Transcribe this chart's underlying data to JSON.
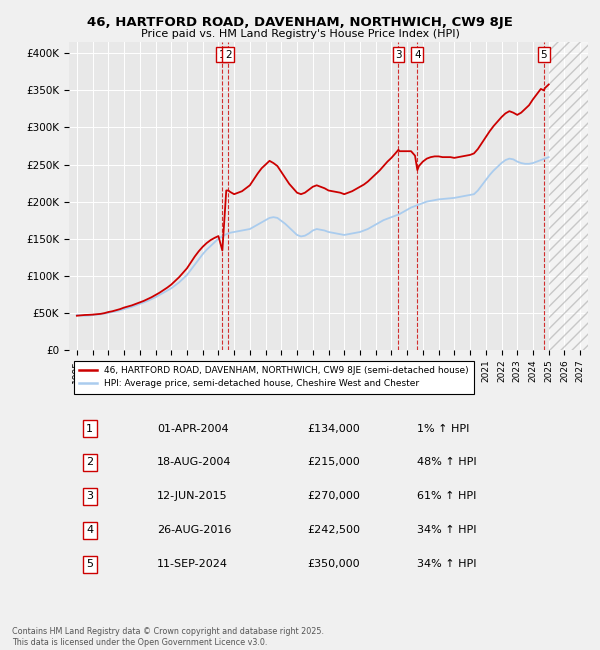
{
  "title": "46, HARTFORD ROAD, DAVENHAM, NORTHWICH, CW9 8JE",
  "subtitle": "Price paid vs. HM Land Registry's House Price Index (HPI)",
  "ytick_values": [
    0,
    50000,
    100000,
    150000,
    200000,
    250000,
    300000,
    350000,
    400000
  ],
  "ylim": [
    0,
    415000
  ],
  "xlim_start": 1994.5,
  "xlim_end": 2027.5,
  "background_color": "#f0f0f0",
  "chart_bg_color": "#e8e8e8",
  "grid_color": "#ffffff",
  "hpi_color": "#aaccee",
  "property_color": "#cc0000",
  "marker_line_color": "#cc0000",
  "legend_property": "46, HARTFORD ROAD, DAVENHAM, NORTHWICH, CW9 8JE (semi-detached house)",
  "legend_hpi": "HPI: Average price, semi-detached house, Cheshire West and Chester",
  "footer": "Contains HM Land Registry data © Crown copyright and database right 2025.\nThis data is licensed under the Open Government Licence v3.0.",
  "transactions": [
    {
      "num": 1,
      "date": "01-APR-2004",
      "price": 134000,
      "pct": "1%",
      "year": 2004.25
    },
    {
      "num": 2,
      "date": "18-AUG-2004",
      "price": 215000,
      "pct": "48%",
      "year": 2004.63
    },
    {
      "num": 3,
      "date": "12-JUN-2015",
      "price": 270000,
      "pct": "61%",
      "year": 2015.45
    },
    {
      "num": 4,
      "date": "26-AUG-2016",
      "price": 242500,
      "pct": "34%",
      "year": 2016.65
    },
    {
      "num": 5,
      "date": "11-SEP-2024",
      "price": 350000,
      "pct": "34%",
      "year": 2024.7
    }
  ],
  "hpi_data": [
    [
      1995.0,
      47000
    ],
    [
      1995.25,
      46500
    ],
    [
      1995.5,
      46000
    ],
    [
      1995.75,
      46200
    ],
    [
      1996.0,
      47000
    ],
    [
      1996.25,
      47500
    ],
    [
      1996.5,
      48000
    ],
    [
      1996.75,
      49000
    ],
    [
      1997.0,
      50000
    ],
    [
      1997.25,
      51000
    ],
    [
      1997.5,
      52000
    ],
    [
      1997.75,
      53500
    ],
    [
      1998.0,
      55000
    ],
    [
      1998.25,
      56500
    ],
    [
      1998.5,
      58000
    ],
    [
      1998.75,
      60000
    ],
    [
      1999.0,
      62000
    ],
    [
      1999.25,
      64000
    ],
    [
      1999.5,
      66000
    ],
    [
      1999.75,
      68500
    ],
    [
      2000.0,
      71000
    ],
    [
      2000.25,
      74000
    ],
    [
      2000.5,
      77000
    ],
    [
      2000.75,
      80000
    ],
    [
      2001.0,
      83000
    ],
    [
      2001.25,
      87000
    ],
    [
      2001.5,
      91000
    ],
    [
      2001.75,
      96000
    ],
    [
      2002.0,
      101000
    ],
    [
      2002.25,
      108000
    ],
    [
      2002.5,
      115000
    ],
    [
      2002.75,
      122000
    ],
    [
      2003.0,
      129000
    ],
    [
      2003.25,
      135000
    ],
    [
      2003.5,
      140000
    ],
    [
      2003.75,
      145000
    ],
    [
      2004.0,
      150000
    ],
    [
      2004.25,
      153000
    ],
    [
      2004.5,
      156000
    ],
    [
      2004.75,
      158000
    ],
    [
      2005.0,
      159000
    ],
    [
      2005.25,
      160000
    ],
    [
      2005.5,
      161000
    ],
    [
      2005.75,
      162000
    ],
    [
      2006.0,
      163000
    ],
    [
      2006.25,
      166000
    ],
    [
      2006.5,
      169000
    ],
    [
      2006.75,
      172000
    ],
    [
      2007.0,
      175000
    ],
    [
      2007.25,
      178000
    ],
    [
      2007.5,
      179000
    ],
    [
      2007.75,
      178000
    ],
    [
      2008.0,
      174000
    ],
    [
      2008.25,
      170000
    ],
    [
      2008.5,
      165000
    ],
    [
      2008.75,
      160000
    ],
    [
      2009.0,
      155000
    ],
    [
      2009.25,
      153000
    ],
    [
      2009.5,
      154000
    ],
    [
      2009.75,
      157000
    ],
    [
      2010.0,
      161000
    ],
    [
      2010.25,
      163000
    ],
    [
      2010.5,
      162000
    ],
    [
      2010.75,
      161000
    ],
    [
      2011.0,
      159000
    ],
    [
      2011.25,
      158000
    ],
    [
      2011.5,
      157000
    ],
    [
      2011.75,
      156000
    ],
    [
      2012.0,
      155000
    ],
    [
      2012.25,
      156000
    ],
    [
      2012.5,
      157000
    ],
    [
      2012.75,
      158000
    ],
    [
      2013.0,
      159000
    ],
    [
      2013.25,
      161000
    ],
    [
      2013.5,
      163000
    ],
    [
      2013.75,
      166000
    ],
    [
      2014.0,
      169000
    ],
    [
      2014.25,
      172000
    ],
    [
      2014.5,
      175000
    ],
    [
      2014.75,
      177000
    ],
    [
      2015.0,
      179000
    ],
    [
      2015.25,
      181000
    ],
    [
      2015.5,
      183000
    ],
    [
      2015.75,
      186000
    ],
    [
      2016.0,
      189000
    ],
    [
      2016.25,
      192000
    ],
    [
      2016.5,
      194000
    ],
    [
      2016.75,
      196000
    ],
    [
      2017.0,
      198000
    ],
    [
      2017.25,
      200000
    ],
    [
      2017.5,
      201000
    ],
    [
      2017.75,
      202000
    ],
    [
      2018.0,
      203000
    ],
    [
      2018.25,
      203500
    ],
    [
      2018.5,
      204000
    ],
    [
      2018.75,
      204500
    ],
    [
      2019.0,
      205000
    ],
    [
      2019.25,
      206000
    ],
    [
      2019.5,
      207000
    ],
    [
      2019.75,
      208000
    ],
    [
      2020.0,
      209000
    ],
    [
      2020.25,
      210000
    ],
    [
      2020.5,
      215000
    ],
    [
      2020.75,
      222000
    ],
    [
      2021.0,
      229000
    ],
    [
      2021.25,
      236000
    ],
    [
      2021.5,
      242000
    ],
    [
      2021.75,
      247000
    ],
    [
      2022.0,
      252000
    ],
    [
      2022.25,
      256000
    ],
    [
      2022.5,
      258000
    ],
    [
      2022.75,
      257000
    ],
    [
      2023.0,
      254000
    ],
    [
      2023.25,
      252000
    ],
    [
      2023.5,
      251000
    ],
    [
      2023.75,
      251000
    ],
    [
      2024.0,
      252000
    ],
    [
      2024.25,
      254000
    ],
    [
      2024.5,
      256000
    ],
    [
      2024.75,
      258000
    ],
    [
      2025.0,
      260000
    ]
  ],
  "property_data": [
    [
      1995.0,
      46000
    ],
    [
      1995.25,
      46500
    ],
    [
      1995.5,
      47000
    ],
    [
      1995.75,
      47200
    ],
    [
      1996.0,
      47500
    ],
    [
      1996.25,
      48000
    ],
    [
      1996.5,
      48500
    ],
    [
      1996.75,
      49500
    ],
    [
      1997.0,
      51000
    ],
    [
      1997.25,
      52000
    ],
    [
      1997.5,
      53500
    ],
    [
      1997.75,
      55000
    ],
    [
      1998.0,
      57000
    ],
    [
      1998.25,
      58500
    ],
    [
      1998.5,
      60000
    ],
    [
      1998.75,
      62000
    ],
    [
      1999.0,
      64000
    ],
    [
      1999.25,
      66000
    ],
    [
      1999.5,
      68500
    ],
    [
      1999.75,
      71000
    ],
    [
      2000.0,
      74000
    ],
    [
      2000.25,
      77000
    ],
    [
      2000.5,
      80500
    ],
    [
      2000.75,
      84000
    ],
    [
      2001.0,
      88000
    ],
    [
      2001.25,
      93000
    ],
    [
      2001.5,
      98000
    ],
    [
      2001.75,
      104000
    ],
    [
      2002.0,
      110000
    ],
    [
      2002.25,
      118000
    ],
    [
      2002.5,
      126000
    ],
    [
      2002.75,
      133000
    ],
    [
      2003.0,
      139000
    ],
    [
      2003.25,
      144000
    ],
    [
      2003.5,
      148000
    ],
    [
      2003.75,
      151000
    ],
    [
      2004.0,
      153500
    ],
    [
      2004.25,
      134000
    ],
    [
      2004.5,
      215000
    ],
    [
      2004.63,
      215000
    ],
    [
      2004.75,
      213000
    ],
    [
      2005.0,
      210000
    ],
    [
      2005.25,
      212000
    ],
    [
      2005.5,
      214000
    ],
    [
      2005.75,
      218000
    ],
    [
      2006.0,
      222000
    ],
    [
      2006.25,
      230000
    ],
    [
      2006.5,
      238000
    ],
    [
      2006.75,
      245000
    ],
    [
      2007.0,
      250000
    ],
    [
      2007.25,
      255000
    ],
    [
      2007.5,
      252000
    ],
    [
      2007.75,
      248000
    ],
    [
      2008.0,
      240000
    ],
    [
      2008.25,
      232000
    ],
    [
      2008.5,
      224000
    ],
    [
      2008.75,
      218000
    ],
    [
      2009.0,
      212000
    ],
    [
      2009.25,
      210000
    ],
    [
      2009.5,
      212000
    ],
    [
      2009.75,
      216000
    ],
    [
      2010.0,
      220000
    ],
    [
      2010.25,
      222000
    ],
    [
      2010.5,
      220000
    ],
    [
      2010.75,
      218000
    ],
    [
      2011.0,
      215000
    ],
    [
      2011.25,
      214000
    ],
    [
      2011.5,
      213000
    ],
    [
      2011.75,
      212000
    ],
    [
      2012.0,
      210000
    ],
    [
      2012.25,
      212000
    ],
    [
      2012.5,
      214000
    ],
    [
      2012.75,
      217000
    ],
    [
      2013.0,
      220000
    ],
    [
      2013.25,
      223000
    ],
    [
      2013.5,
      227000
    ],
    [
      2013.75,
      232000
    ],
    [
      2014.0,
      237000
    ],
    [
      2014.25,
      242000
    ],
    [
      2014.5,
      248000
    ],
    [
      2014.75,
      254000
    ],
    [
      2015.0,
      259000
    ],
    [
      2015.25,
      265000
    ],
    [
      2015.45,
      270000
    ],
    [
      2015.5,
      268000
    ],
    [
      2015.75,
      268000
    ],
    [
      2016.0,
      268000
    ],
    [
      2016.25,
      268000
    ],
    [
      2016.5,
      262000
    ],
    [
      2016.65,
      242500
    ],
    [
      2016.75,
      248000
    ],
    [
      2017.0,
      254000
    ],
    [
      2017.25,
      258000
    ],
    [
      2017.5,
      260000
    ],
    [
      2017.75,
      261000
    ],
    [
      2018.0,
      261000
    ],
    [
      2018.25,
      260000
    ],
    [
      2018.5,
      260000
    ],
    [
      2018.75,
      260000
    ],
    [
      2019.0,
      259000
    ],
    [
      2019.25,
      260000
    ],
    [
      2019.5,
      261000
    ],
    [
      2019.75,
      262000
    ],
    [
      2020.0,
      263000
    ],
    [
      2020.25,
      265000
    ],
    [
      2020.5,
      271000
    ],
    [
      2020.75,
      279000
    ],
    [
      2021.0,
      287000
    ],
    [
      2021.25,
      295000
    ],
    [
      2021.5,
      302000
    ],
    [
      2021.75,
      308000
    ],
    [
      2022.0,
      314000
    ],
    [
      2022.25,
      319000
    ],
    [
      2022.5,
      322000
    ],
    [
      2022.75,
      320000
    ],
    [
      2023.0,
      317000
    ],
    [
      2023.25,
      320000
    ],
    [
      2023.5,
      325000
    ],
    [
      2023.75,
      330000
    ],
    [
      2024.0,
      338000
    ],
    [
      2024.25,
      345000
    ],
    [
      2024.5,
      352000
    ],
    [
      2024.7,
      350000
    ],
    [
      2024.75,
      353000
    ],
    [
      2025.0,
      358000
    ]
  ],
  "hatched_region_start": 2025.0,
  "hatched_region_end": 2027.5,
  "xtick_years": [
    1995,
    1996,
    1997,
    1998,
    1999,
    2000,
    2001,
    2002,
    2003,
    2004,
    2005,
    2006,
    2007,
    2008,
    2009,
    2010,
    2011,
    2012,
    2013,
    2014,
    2015,
    2016,
    2017,
    2018,
    2019,
    2020,
    2021,
    2022,
    2023,
    2024,
    2025,
    2026,
    2027
  ]
}
